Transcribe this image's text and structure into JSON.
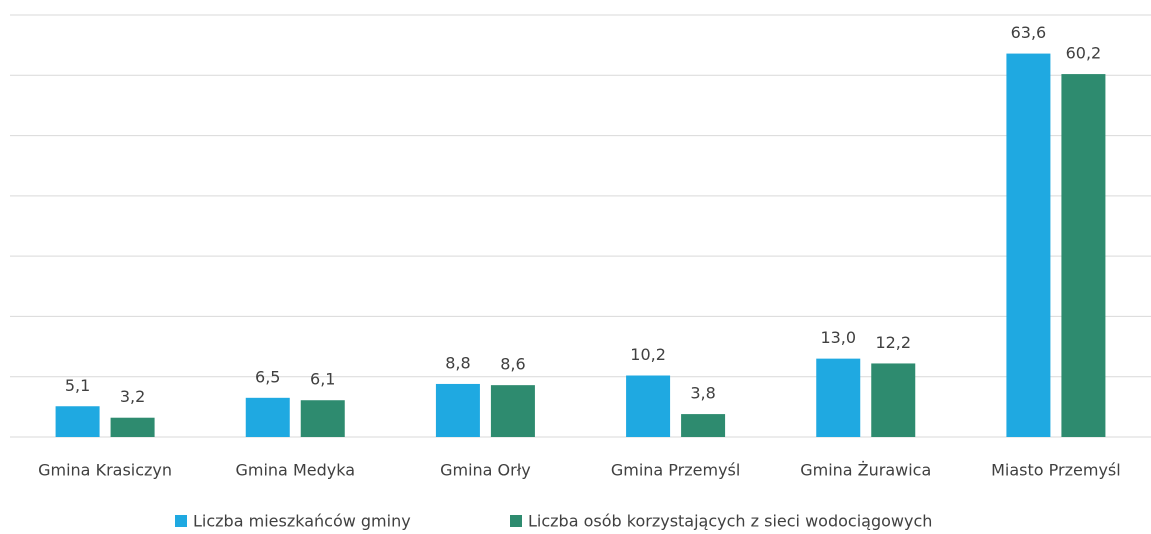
{
  "chart_data": {
    "type": "bar",
    "categories": [
      "Gmina Krasiczyn",
      "Gmina Medyka",
      "Gmina Orły",
      "Gmina Przemyśl",
      "Gmina Żurawica",
      "Miasto Przemyśl"
    ],
    "series": [
      {
        "name": "Liczba mieszkańców gminy",
        "color": "#1fa9e1",
        "values": [
          5.1,
          6.5,
          8.8,
          10.2,
          13.0,
          63.6
        ],
        "value_labels": [
          "5,1",
          "6,5",
          "8,8",
          "10,2",
          "13,0",
          "63,6"
        ]
      },
      {
        "name": "Liczba osób korzystających z sieci wodociągowych",
        "color": "#2e8b6f",
        "values": [
          3.2,
          6.1,
          8.6,
          3.8,
          12.2,
          60.2
        ],
        "value_labels": [
          "3,2",
          "6,1",
          "8,6",
          "3,8",
          "12,2",
          "60,2"
        ]
      }
    ],
    "ylim": [
      0,
      70
    ],
    "yticks": [
      0,
      10,
      20,
      30,
      40,
      50,
      60,
      70
    ],
    "grid": true,
    "legend": "bottom"
  }
}
